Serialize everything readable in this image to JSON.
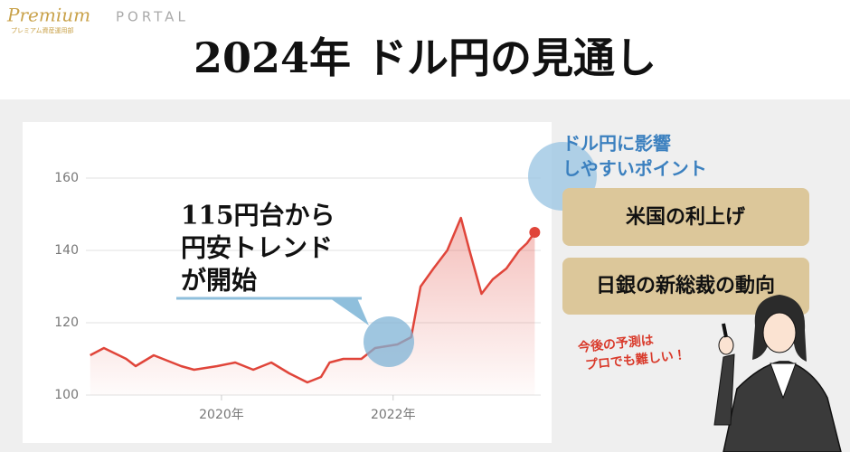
{
  "header": {
    "logo": "Premium",
    "brand": "PORTAL",
    "tagline": "プレミアム資産運用部"
  },
  "title": "2024年 ドル円の見通し",
  "annotation": [
    "115円台から",
    "円安トレンド",
    "が開始"
  ],
  "points_heading": [
    "ドル円に影響",
    "しやすいポイント"
  ],
  "points": [
    "米国の利上げ",
    "日銀の新総裁の動向"
  ],
  "caption": [
    "今後の予測は",
    "プロでも難しい！"
  ],
  "chart_data": {
    "type": "line",
    "color": "#e0453a",
    "x": [
      2018.47,
      2018.63,
      2018.89,
      2019.0,
      2019.21,
      2019.53,
      2019.68,
      2019.95,
      2020.16,
      2020.37,
      2020.58,
      2020.79,
      2021.0,
      2021.16,
      2021.26,
      2021.42,
      2021.63,
      2021.79,
      2022.05,
      2022.21,
      2022.32,
      2022.47,
      2022.63,
      2022.79,
      2022.89,
      2023.03,
      2023.16,
      2023.32,
      2023.47,
      2023.56,
      2023.65
    ],
    "values": [
      111,
      113,
      110,
      108,
      111,
      108,
      107,
      108,
      109,
      107,
      109,
      106,
      103.5,
      105,
      109,
      110,
      110,
      113,
      114,
      116,
      130,
      135,
      140,
      149,
      140,
      128,
      132,
      135,
      140,
      142,
      145
    ],
    "xlim": [
      2018.42,
      2023.72
    ],
    "xticks": [
      {
        "value": 2020,
        "label": "2020年"
      },
      {
        "value": 2022,
        "label": "2022年"
      }
    ],
    "ylim": [
      100,
      160
    ],
    "yticks": [
      100,
      120,
      140,
      160
    ],
    "grid": true
  }
}
